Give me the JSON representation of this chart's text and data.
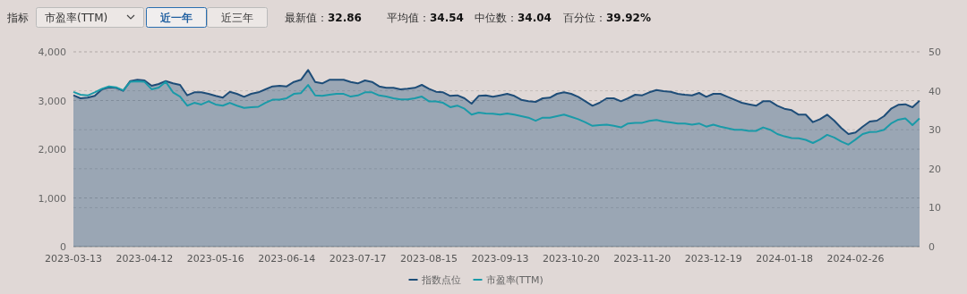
{
  "chart_data": {
    "type": "line",
    "annotations": [
      "指标",
      "市盈率(TTM)",
      "近一年",
      "近三年",
      "最新值：**32.86**",
      "平均值：**34.54**",
      "中位数：**34.04**",
      "百分位：**39.92%**"
    ],
    "categories": [
      "2023-03-13",
      null,
      null,
      null,
      null,
      null,
      null,
      null,
      null,
      null,
      "2023-04-12",
      null,
      null,
      null,
      null,
      null,
      null,
      null,
      null,
      null,
      "2023-05-16",
      null,
      null,
      null,
      null,
      null,
      null,
      null,
      null,
      null,
      "2023-06-14",
      null,
      null,
      null,
      null,
      null,
      null,
      null,
      null,
      null,
      "2023-07-17",
      null,
      null,
      null,
      null,
      null,
      null,
      null,
      null,
      null,
      "2023-08-15",
      null,
      null,
      null,
      null,
      null,
      null,
      null,
      null,
      null,
      "2023-09-13",
      null,
      null,
      null,
      null,
      null,
      null,
      null,
      null,
      null,
      "2023-10-20",
      null,
      null,
      null,
      null,
      null,
      null,
      null,
      null,
      null,
      "2023-11-20",
      null,
      null,
      null,
      null,
      null,
      null,
      null,
      null,
      null,
      "2023-12-19",
      null,
      null,
      null,
      null,
      null,
      null,
      null,
      null,
      null,
      "2024-01-18",
      null,
      null,
      null,
      null,
      null,
      null,
      null,
      null,
      null,
      "2024-02-26",
      null,
      null,
      null,
      null,
      null,
      null,
      null,
      null,
      null
    ],
    "series": [
      {
        "name": "指数点位",
        "type": "area",
        "color": "#1e4d78",
        "values": [
          3107,
          3046,
          3059,
          3096,
          3230,
          3272,
          3261,
          3199,
          3400,
          3426,
          3413,
          3303,
          3340,
          3400,
          3352,
          3322,
          3107,
          3169,
          3169,
          3138,
          3096,
          3059,
          3180,
          3138,
          3077,
          3138,
          3169,
          3230,
          3290,
          3303,
          3290,
          3382,
          3426,
          3628,
          3382,
          3352,
          3426,
          3426,
          3426,
          3382,
          3352,
          3413,
          3382,
          3290,
          3261,
          3261,
          3230,
          3242,
          3261,
          3321,
          3242,
          3180,
          3169,
          3096,
          3107,
          3046,
          2936,
          3096,
          3107,
          3077,
          3107,
          3138,
          3096,
          3015,
          2986,
          2973,
          3046,
          3059,
          3138,
          3169,
          3138,
          3077,
          2986,
          2894,
          2955,
          3046,
          3046,
          2986,
          3046,
          3120,
          3107,
          3169,
          3217,
          3193,
          3180,
          3138,
          3120,
          3107,
          3156,
          3077,
          3138,
          3138,
          3077,
          3015,
          2955,
          2923,
          2894,
          2986,
          2986,
          2894,
          2831,
          2802,
          2710,
          2710,
          2556,
          2619,
          2710,
          2587,
          2435,
          2312,
          2343,
          2464,
          2569,
          2587,
          2679,
          2831,
          2912,
          2923,
          2862,
          2997
        ]
      },
      {
        "name": "市盈率(TTM)",
        "type": "line",
        "axis": "y2",
        "color": "#1a9aa8",
        "values": [
          39.7,
          39.0,
          38.8,
          39.6,
          40.5,
          41.1,
          40.9,
          40.1,
          42.3,
          42.4,
          42.3,
          40.4,
          40.8,
          42.3,
          39.6,
          38.5,
          36.2,
          36.9,
          36.5,
          37.3,
          36.5,
          36.2,
          36.9,
          36.2,
          35.6,
          35.8,
          35.9,
          36.9,
          37.7,
          37.7,
          38.1,
          39.2,
          39.4,
          41.5,
          38.8,
          38.7,
          39.0,
          39.2,
          39.2,
          38.5,
          38.8,
          39.6,
          39.6,
          38.8,
          38.5,
          38.1,
          37.8,
          37.8,
          38.1,
          38.5,
          37.3,
          37.3,
          36.9,
          35.8,
          36.2,
          35.4,
          33.9,
          34.4,
          34.2,
          34.1,
          33.9,
          34.2,
          33.9,
          33.5,
          33.1,
          32.3,
          33.1,
          33.1,
          33.5,
          33.9,
          33.3,
          32.7,
          31.9,
          31.0,
          31.2,
          31.3,
          31.0,
          30.6,
          31.6,
          31.8,
          31.8,
          32.3,
          32.5,
          32.1,
          31.9,
          31.6,
          31.6,
          31.3,
          31.6,
          30.8,
          31.3,
          30.8,
          30.4,
          30.0,
          30.0,
          29.7,
          29.7,
          30.6,
          30.0,
          28.9,
          28.3,
          27.9,
          27.8,
          27.4,
          26.6,
          27.5,
          28.7,
          28.0,
          27.0,
          26.2,
          27.5,
          28.9,
          29.4,
          29.5,
          30.0,
          31.6,
          32.6,
          32.9,
          31.2,
          32.9
        ]
      }
    ],
    "ylim": [
      0,
      4000
    ],
    "yticks": [
      0,
      {
        "value": 1000,
        "label": "1,000"
      },
      {
        "value": 2000,
        "label": "2,000"
      },
      {
        "value": 3000,
        "label": "3,000"
      },
      {
        "value": 4000,
        "label": "4,000"
      }
    ],
    "y2lim": [
      0,
      50
    ],
    "y2ticks": [
      0,
      10,
      20,
      30,
      40,
      50
    ],
    "grid": true,
    "legend": "bottom"
  }
}
